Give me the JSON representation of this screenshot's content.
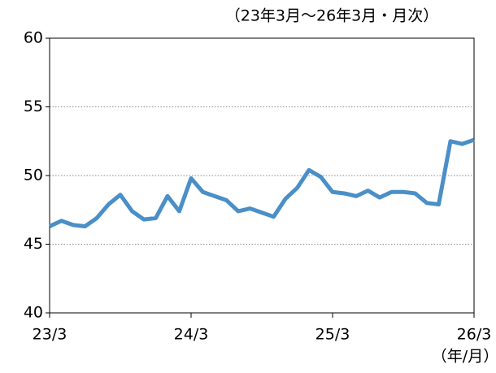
{
  "chart_data": {
    "type": "line",
    "subtitle": "（23年3月～26年3月・月次）",
    "x_label": "（年/月）",
    "categories": [
      "23/3",
      null,
      null,
      null,
      null,
      null,
      null,
      null,
      null,
      null,
      null,
      null,
      "24/3",
      null,
      null,
      null,
      null,
      null,
      null,
      null,
      null,
      null,
      null,
      null,
      "25/3",
      null,
      null,
      null,
      null,
      null,
      null,
      null,
      null,
      null,
      null,
      null,
      "26/3"
    ],
    "series": [
      {
        "name": "",
        "color": "#4a8fc7",
        "values": [
          46.3,
          46.7,
          46.4,
          46.3,
          46.9,
          47.9,
          48.6,
          47.4,
          46.8,
          46.9,
          48.5,
          47.4,
          49.8,
          48.8,
          48.5,
          48.2,
          47.4,
          47.6,
          47.3,
          47.0,
          48.3,
          49.1,
          50.4,
          49.9,
          48.8,
          48.7,
          48.5,
          48.9,
          48.4,
          48.8,
          48.8,
          48.7,
          48.0,
          47.9,
          52.5,
          52.3,
          52.6
        ]
      }
    ],
    "ylim": [
      40,
      60
    ],
    "yticks": [
      40,
      45,
      50,
      55,
      60
    ],
    "grid": true
  }
}
